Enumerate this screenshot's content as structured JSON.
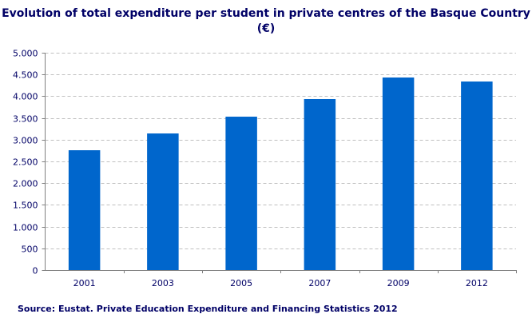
{
  "chart_data": {
    "type": "bar",
    "title": "Evolution of total expenditure per student in private centres of the Basque Country (€)",
    "source": "Source: Eustat. Private Education Expenditure and Financing Statistics 2012",
    "categories": [
      "2001",
      "2003",
      "2005",
      "2007",
      "2009",
      "2012"
    ],
    "values": [
      2757,
      3143,
      3529,
      3934,
      4430,
      4338
    ],
    "ylim": [
      0,
      5000
    ],
    "yticks": [
      0,
      500,
      1000,
      1500,
      2000,
      2500,
      3000,
      3500,
      4000,
      4500,
      5000
    ],
    "ytick_labels": [
      "0",
      "500",
      "1.000",
      "1.500",
      "2.000",
      "2.500",
      "3.000",
      "3.500",
      "4.000",
      "4.500",
      "5.000"
    ],
    "grid": true,
    "legend": "none",
    "bar_color": "#0066CC"
  }
}
